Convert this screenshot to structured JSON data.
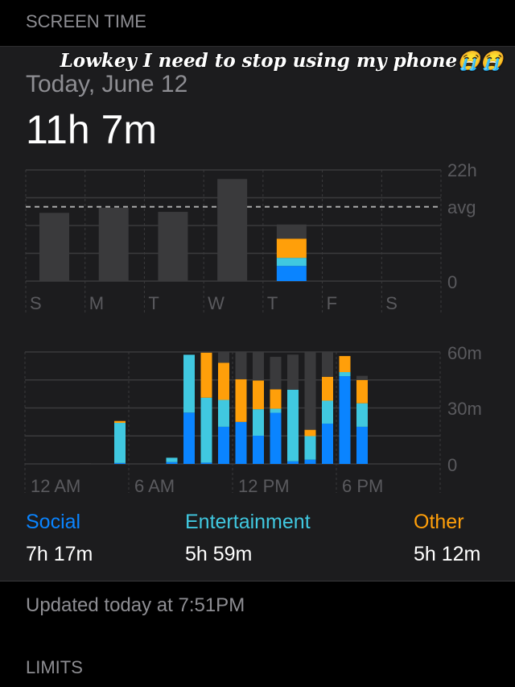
{
  "header": {
    "title": "SCREEN TIME"
  },
  "summary": {
    "date": "Today, June 12",
    "total": "11h 7m"
  },
  "overlay_caption": "Lowkey I need to stop using my phone😭😭",
  "colors": {
    "social": "#0a84ff",
    "entertainment": "#40c8e0",
    "other": "#ff9f0a",
    "uncategorized": "#3a3a3c",
    "background": "#1c1c1e"
  },
  "chart_data": [
    {
      "type": "bar",
      "stacked": true,
      "title": "",
      "categories": [
        "S",
        "M",
        "T",
        "W",
        "T",
        "F",
        "S"
      ],
      "y_ticks": [
        "22h",
        "avg",
        "0"
      ],
      "ylim": [
        0,
        22
      ],
      "unit": "hours",
      "average": 14.7,
      "highlighted": 4,
      "series": [
        {
          "name": "Social",
          "values": [
            0,
            0,
            0,
            0,
            3.0,
            0,
            0
          ]
        },
        {
          "name": "Entertainment",
          "values": [
            0,
            0,
            0,
            0,
            1.6,
            0,
            0
          ]
        },
        {
          "name": "Other",
          "values": [
            0,
            0,
            0,
            0,
            3.8,
            0,
            0
          ]
        },
        {
          "values": [
            13.5,
            14.5,
            13.7,
            20.2,
            2.8,
            0,
            0
          ]
        }
      ]
    },
    {
      "type": "bar",
      "stacked": true,
      "title": "",
      "x_ticks": [
        "12 AM",
        "6 AM",
        "12 PM",
        "6 PM"
      ],
      "y_ticks": [
        "60m",
        "30m",
        "0"
      ],
      "ylim": [
        0,
        60
      ],
      "unit": "minutes",
      "hours": [
        0,
        1,
        2,
        3,
        4,
        5,
        6,
        7,
        8,
        9,
        10,
        11,
        12,
        13,
        14,
        15,
        16,
        17,
        18,
        19,
        20,
        21,
        22,
        23
      ],
      "series": [
        {
          "name": "Social",
          "values": [
            0,
            0,
            0,
            0,
            0,
            0.5,
            0,
            0,
            1,
            27.5,
            0.7,
            19.9,
            22.5,
            15.1,
            27.4,
            1.4,
            2.3,
            21.6,
            47,
            19.9,
            0,
            0,
            0,
            0
          ]
        },
        {
          "name": "Entertainment",
          "values": [
            0,
            0,
            0,
            0,
            0,
            21.5,
            0,
            0,
            2.3,
            31,
            34.8,
            14.4,
            0,
            14.2,
            2.2,
            38.4,
            12.6,
            12.3,
            2.2,
            12.6,
            0,
            0,
            0,
            0
          ]
        },
        {
          "name": "Other",
          "values": [
            0,
            0,
            0,
            0,
            0,
            1,
            0,
            0,
            0,
            0,
            24.1,
            19.9,
            22.9,
            15.4,
            10.4,
            0,
            3.4,
            12.8,
            8.6,
            12.5,
            0,
            0,
            0,
            0
          ]
        },
        {
          "values": [
            0,
            0,
            0,
            0.4,
            0,
            0,
            0,
            0,
            0,
            0,
            0,
            5.8,
            14.6,
            15.3,
            17.4,
            18.8,
            41.7,
            13.3,
            0,
            2.2,
            0,
            0,
            0,
            0
          ]
        }
      ]
    }
  ],
  "categories": [
    {
      "label": "Social",
      "value": "7h 17m"
    },
    {
      "label": "Entertainment",
      "value": "5h 59m"
    },
    {
      "label": "Other",
      "value": "5h 12m"
    }
  ],
  "footer": {
    "updated": "Updated today at 7:51PM",
    "limits_header": "LIMITS"
  }
}
